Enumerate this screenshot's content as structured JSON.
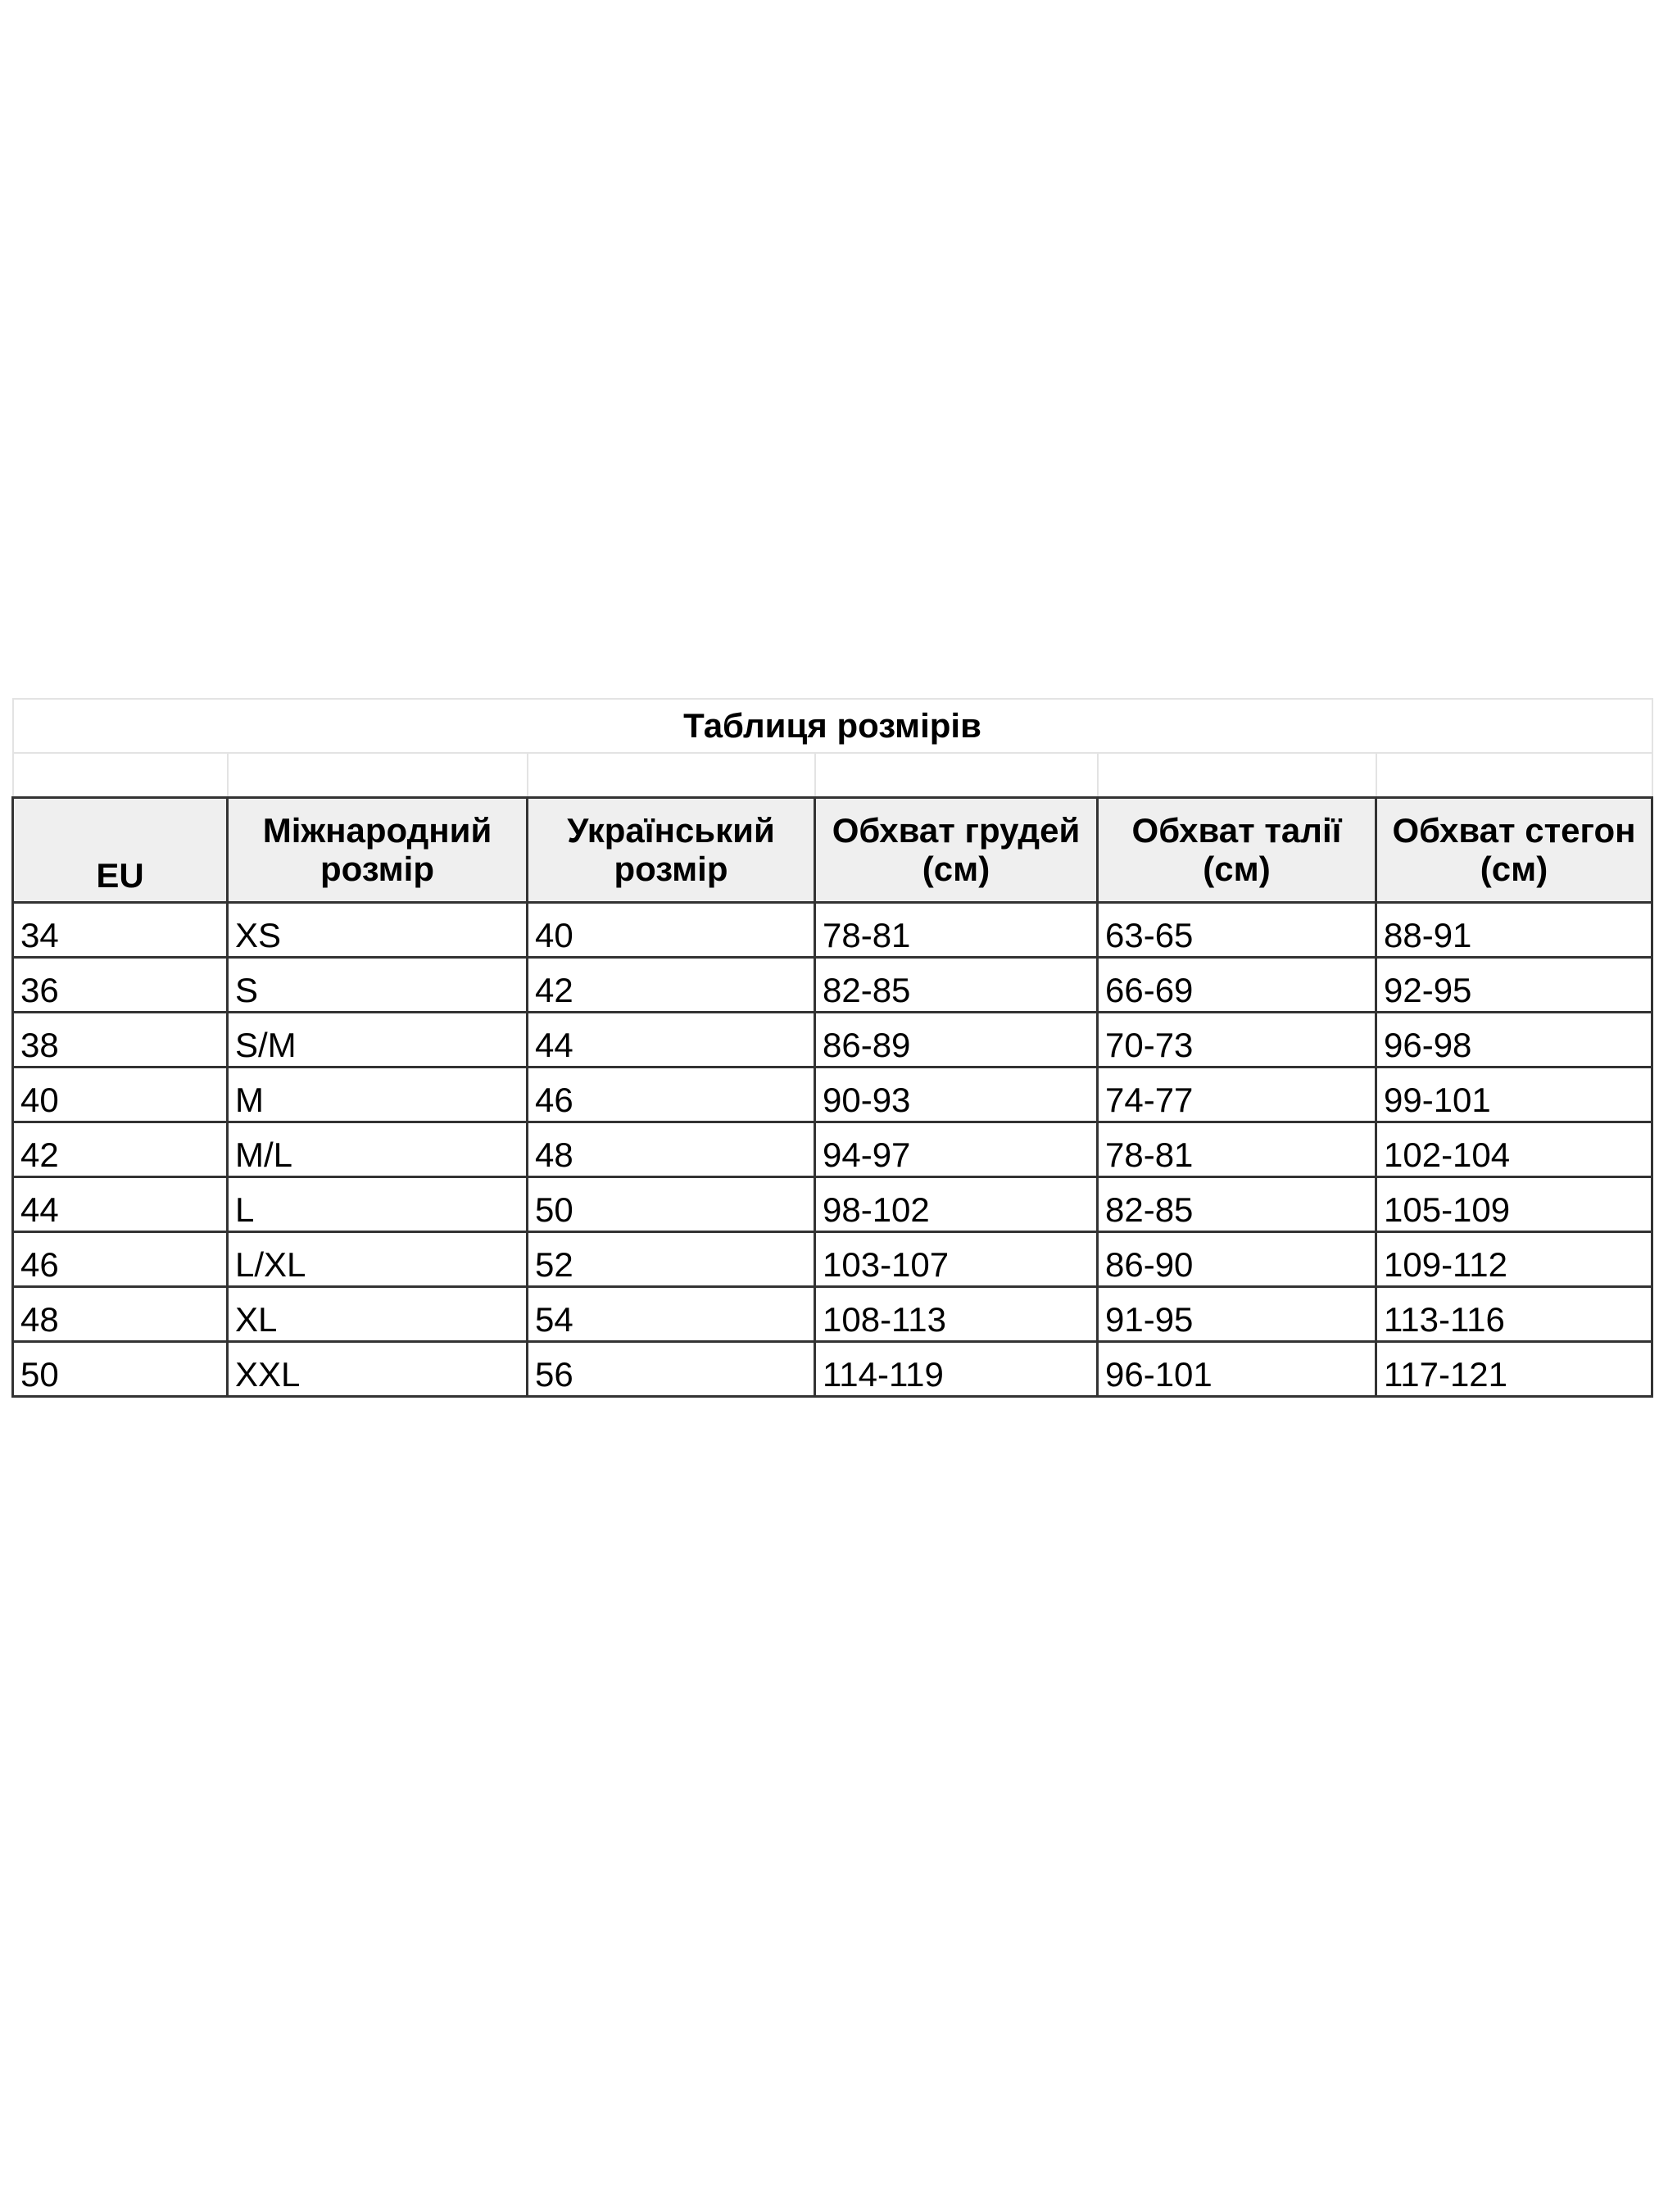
{
  "title": "Таблиця розмірів",
  "columns": [
    "EU",
    "Міжнародний розмір",
    "Український розмір",
    "Обхват грудей (см)",
    "Обхват талії (см)",
    "Обхват стегон (см)"
  ],
  "rows": [
    [
      "34",
      "XS",
      "40",
      "78-81",
      "63-65",
      "88-91"
    ],
    [
      "36",
      "S",
      "42",
      "82-85",
      "66-69",
      "92-95"
    ],
    [
      "38",
      "S/M",
      "44",
      "86-89",
      "70-73",
      "96-98"
    ],
    [
      "40",
      "M",
      "46",
      "90-93",
      "74-77",
      "99-101"
    ],
    [
      "42",
      "M/L",
      "48",
      "94-97",
      "78-81",
      "102-104"
    ],
    [
      "44",
      "L",
      "50",
      "98-102",
      "82-85",
      "105-109"
    ],
    [
      "46",
      "L/XL",
      "52",
      "103-107",
      "86-90",
      "109-112"
    ],
    [
      "48",
      "XL",
      "54",
      "108-113",
      "91-95",
      "113-116"
    ],
    [
      "50",
      "XXL",
      "56",
      "114-119",
      "96-101",
      "117-121"
    ]
  ]
}
